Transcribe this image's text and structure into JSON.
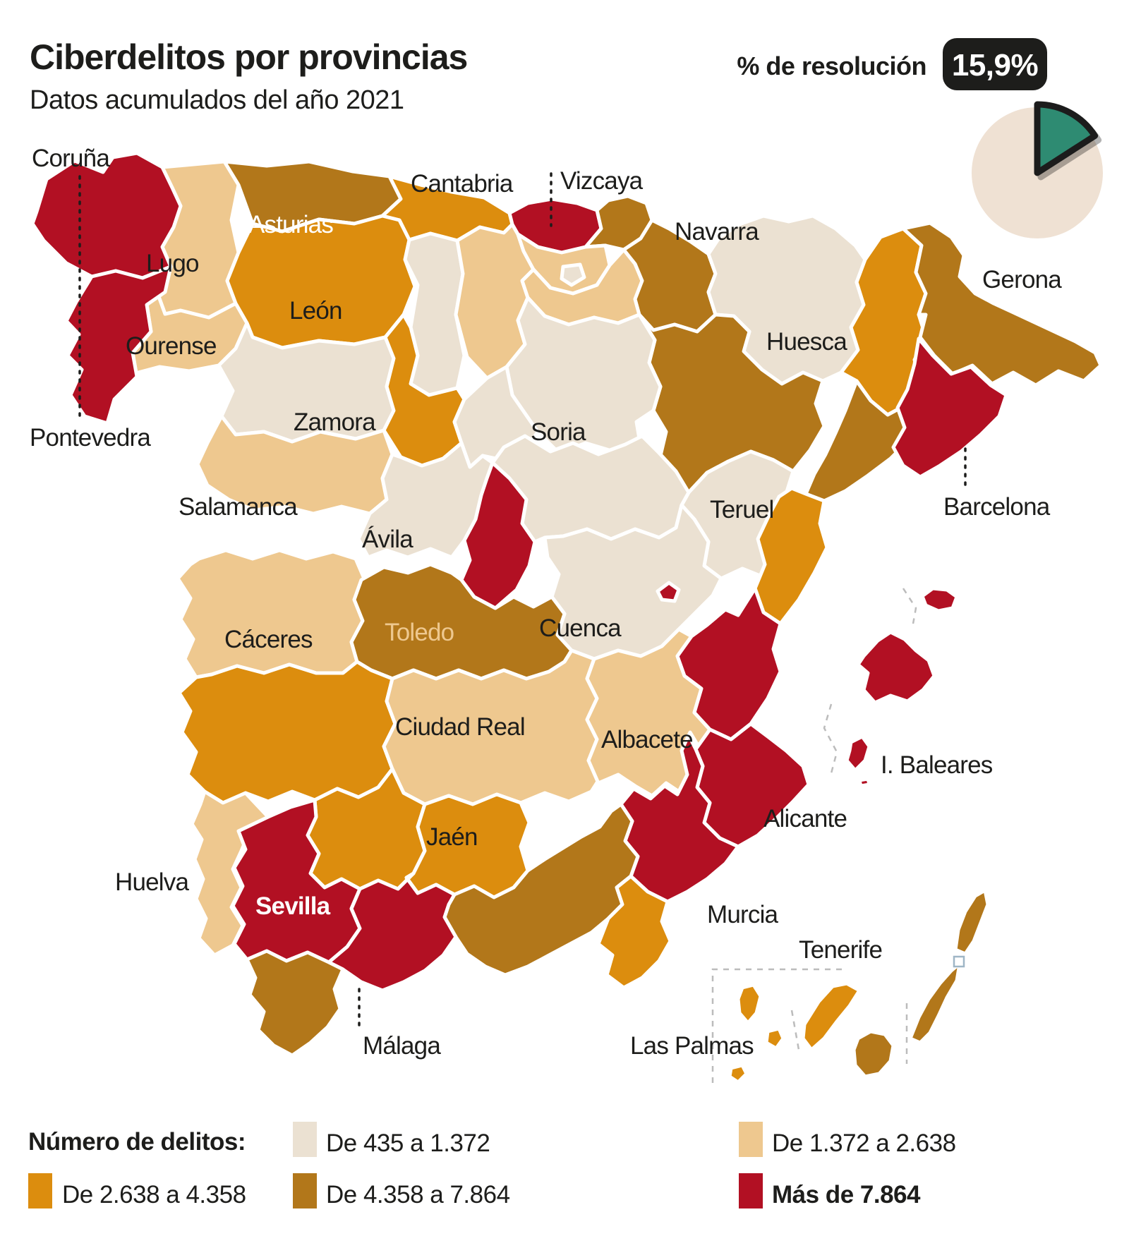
{
  "header": {
    "title": "Ciberdelitos por provincias",
    "subtitle": "Datos acumulados del año 2021",
    "resolution_label": "% de resolución",
    "resolution_badge": "15,9%",
    "resolution_pct": 15.9
  },
  "colors": {
    "cream": "#ebe1d2",
    "tan": "#eec88f",
    "orange": "#dc8d0e",
    "brown": "#b2771a",
    "red": "#b21023",
    "teal": "#2f8b72",
    "pie_bg": "#efe1d3",
    "badge_bg": "#1d1d1b",
    "text": "#1d1d1b",
    "dash_gray": "#bcbcbc",
    "islet_outline": "#9fb6c6"
  },
  "legend": {
    "title": "Número de delitos:",
    "items": [
      {
        "label": "De 435 a 1.372",
        "category": "cream",
        "bold": false
      },
      {
        "label": "De 1.372 a 2.638",
        "category": "tan",
        "bold": false
      },
      {
        "label": "De 2.638 a 4.358",
        "category": "orange",
        "bold": false
      },
      {
        "label": "De 4.358 a 7.864",
        "category": "brown",
        "bold": false
      },
      {
        "label": "Más de 7.864",
        "category": "red",
        "bold": true
      }
    ]
  },
  "map": {
    "labels": [
      {
        "id": "coruna",
        "text": "Coruña"
      },
      {
        "id": "lugo",
        "text": "Lugo"
      },
      {
        "id": "ourense",
        "text": "Ourense"
      },
      {
        "id": "pontevedra",
        "text": "Pontevedra"
      },
      {
        "id": "asturias",
        "text": "Asturias"
      },
      {
        "id": "leon",
        "text": "León"
      },
      {
        "id": "cantabria",
        "text": "Cantabria"
      },
      {
        "id": "vizcaya",
        "text": "Vizcaya"
      },
      {
        "id": "navarra",
        "text": "Navarra"
      },
      {
        "id": "huesca",
        "text": "Huesca"
      },
      {
        "id": "gerona",
        "text": "Gerona"
      },
      {
        "id": "zamora",
        "text": "Zamora"
      },
      {
        "id": "soria",
        "text": "Soria"
      },
      {
        "id": "teruel",
        "text": "Teruel"
      },
      {
        "id": "barcelona",
        "text": "Barcelona"
      },
      {
        "id": "salamanca",
        "text": "Salamanca"
      },
      {
        "id": "avila",
        "text": "Ávila"
      },
      {
        "id": "cuenca",
        "text": "Cuenca"
      },
      {
        "id": "caceres",
        "text": "Cáceres"
      },
      {
        "id": "toledo",
        "text": "Toledo"
      },
      {
        "id": "ciudadreal",
        "text": "Ciudad Real"
      },
      {
        "id": "albacete",
        "text": "Albacete"
      },
      {
        "id": "alicante",
        "text": "Alicante"
      },
      {
        "id": "baleares",
        "text": "I. Baleares"
      },
      {
        "id": "jaen",
        "text": "Jaén"
      },
      {
        "id": "huelva",
        "text": "Huelva"
      },
      {
        "id": "sevilla",
        "text": "Sevilla"
      },
      {
        "id": "murcia",
        "text": "Murcia"
      },
      {
        "id": "tenerife",
        "text": "Tenerife"
      },
      {
        "id": "laspalmas",
        "text": "Las Palmas"
      },
      {
        "id": "malaga",
        "text": "Málaga"
      }
    ],
    "provinces": [
      {
        "id": "ourense",
        "category": "tan"
      },
      {
        "id": "lugo",
        "category": "tan"
      },
      {
        "id": "coruna",
        "category": "red"
      },
      {
        "id": "pontevedra",
        "category": "red"
      },
      {
        "id": "asturias",
        "category": "brown"
      },
      {
        "id": "cantabria",
        "category": "orange"
      },
      {
        "id": "leon",
        "category": "orange"
      },
      {
        "id": "palencia",
        "category": "cream"
      },
      {
        "id": "burgos",
        "category": "tan"
      },
      {
        "id": "vizcaya",
        "category": "red"
      },
      {
        "id": "guipuzcoa",
        "category": "brown"
      },
      {
        "id": "alava",
        "category": "tan"
      },
      {
        "id": "trevino",
        "category": "cream"
      },
      {
        "id": "larioja",
        "category": "tan"
      },
      {
        "id": "navarra",
        "category": "brown"
      },
      {
        "id": "huesca",
        "category": "cream"
      },
      {
        "id": "zaragoza",
        "category": "brown"
      },
      {
        "id": "soria",
        "category": "cream"
      },
      {
        "id": "zamora",
        "category": "cream"
      },
      {
        "id": "valladolid",
        "category": "orange"
      },
      {
        "id": "segovia",
        "category": "cream"
      },
      {
        "id": "salamanca",
        "category": "tan"
      },
      {
        "id": "avila",
        "category": "cream"
      },
      {
        "id": "lerida",
        "category": "orange"
      },
      {
        "id": "gerona",
        "category": "brown"
      },
      {
        "id": "tarragona",
        "category": "brown"
      },
      {
        "id": "barcelona",
        "category": "red"
      },
      {
        "id": "teruel",
        "category": "cream"
      },
      {
        "id": "guadalajara",
        "category": "cream"
      },
      {
        "id": "cuenca",
        "category": "cream"
      },
      {
        "id": "castellon",
        "category": "orange"
      },
      {
        "id": "caceres",
        "category": "tan"
      },
      {
        "id": "toledo",
        "category": "brown"
      },
      {
        "id": "madrid",
        "category": "red"
      },
      {
        "id": "badajoz",
        "category": "orange"
      },
      {
        "id": "ciudadreal",
        "category": "tan"
      },
      {
        "id": "albacete",
        "category": "tan"
      },
      {
        "id": "valencia",
        "category": "red"
      },
      {
        "id": "valencia_ex",
        "category": "red"
      },
      {
        "id": "alicante",
        "category": "red"
      },
      {
        "id": "murcia",
        "category": "red"
      },
      {
        "id": "cordoba",
        "category": "orange"
      },
      {
        "id": "jaen",
        "category": "orange"
      },
      {
        "id": "huelva",
        "category": "tan"
      },
      {
        "id": "sevilla",
        "category": "red"
      },
      {
        "id": "granada",
        "category": "brown"
      },
      {
        "id": "almeria",
        "category": "orange"
      },
      {
        "id": "malaga",
        "category": "red"
      },
      {
        "id": "cadiz",
        "category": "brown"
      },
      {
        "id": "menorca",
        "category": "red"
      },
      {
        "id": "mallorca",
        "category": "red"
      },
      {
        "id": "ibiza",
        "category": "red"
      },
      {
        "id": "formentera",
        "category": "red"
      },
      {
        "id": "lapalma",
        "category": "orange"
      },
      {
        "id": "gomera",
        "category": "orange"
      },
      {
        "id": "hierro",
        "category": "orange"
      },
      {
        "id": "tenerife_isla",
        "category": "orange"
      },
      {
        "id": "grancanaria",
        "category": "brown"
      },
      {
        "id": "fuerteventura",
        "category": "brown"
      },
      {
        "id": "lanzarote",
        "category": "brown"
      }
    ]
  }
}
